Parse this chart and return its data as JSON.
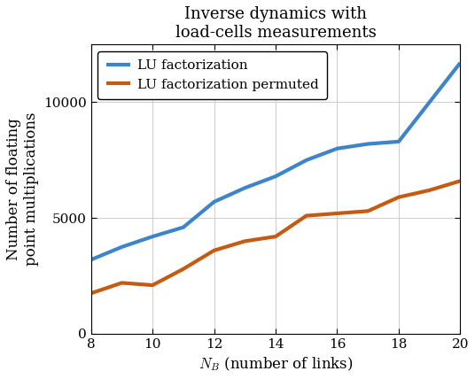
{
  "title_line1": "Inverse dynamics with",
  "title_line2": "load-cells measurements",
  "xlabel": "$N_B$ (number of links)",
  "ylabel": "Number of floating\npoint multiplications",
  "x": [
    8,
    9,
    10,
    11,
    12,
    13,
    14,
    15,
    16,
    17,
    18,
    19,
    20
  ],
  "blue_y": [
    3200,
    3750,
    4200,
    4600,
    5700,
    6300,
    6800,
    7500,
    8000,
    8200,
    8300,
    10000,
    11700
  ],
  "orange_y": [
    1750,
    2200,
    2100,
    2800,
    3600,
    4000,
    4200,
    5100,
    5200,
    5300,
    5900,
    6200,
    6600
  ],
  "blue_color": "#3d85c8",
  "orange_color": "#c55a11",
  "blue_label": "LU factorization",
  "orange_label": "LU factorization permuted",
  "xlim": [
    8,
    20
  ],
  "ylim": [
    0,
    12500
  ],
  "yticks": [
    0,
    5000,
    10000
  ],
  "xticks": [
    8,
    10,
    12,
    14,
    16,
    18,
    20
  ],
  "linewidth": 3.0,
  "grid_color": "#d0d0d0",
  "title_fontsize": 13,
  "label_fontsize": 12,
  "tick_fontsize": 11,
  "legend_fontsize": 11
}
